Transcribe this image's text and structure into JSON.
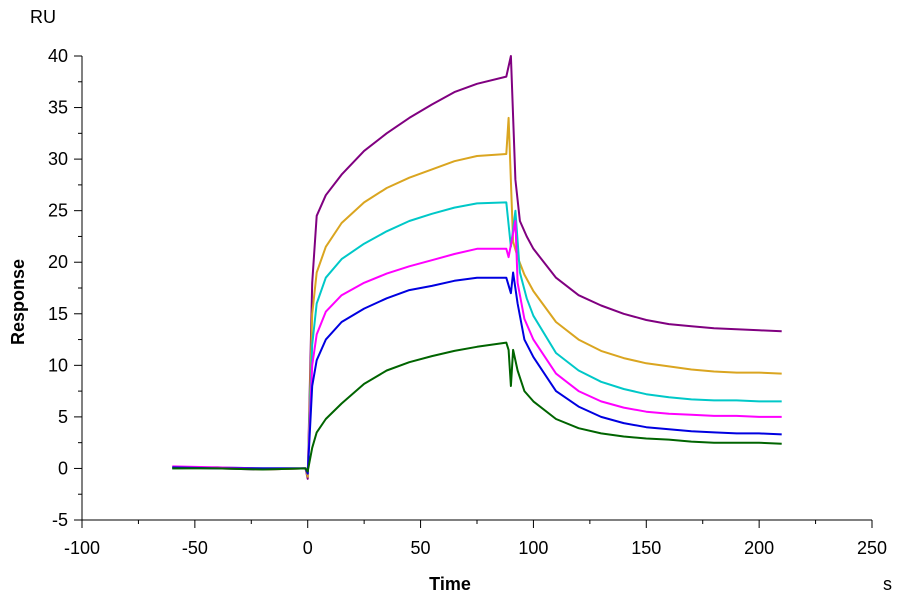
{
  "chart_data": {
    "type": "line",
    "title": "",
    "xlabel": "Time",
    "ylabel": "Response",
    "x_unit": "s",
    "y_unit": "RU",
    "xlim": [
      -100,
      250
    ],
    "ylim": [
      -5,
      40
    ],
    "xticks": [
      -100,
      -50,
      0,
      50,
      100,
      150,
      200,
      250
    ],
    "yticks": [
      -5,
      0,
      5,
      10,
      15,
      20,
      25,
      30,
      35,
      40
    ],
    "grid": false,
    "legend": "none",
    "series": [
      {
        "color": "#800080",
        "points": [
          [
            -60,
            0.1
          ],
          [
            -40,
            0.0
          ],
          [
            -20,
            -0.1
          ],
          [
            -1,
            0.0
          ],
          [
            0,
            -1.0
          ],
          [
            2,
            18
          ],
          [
            4,
            24.5
          ],
          [
            8,
            26.5
          ],
          [
            15,
            28.5
          ],
          [
            25,
            30.8
          ],
          [
            35,
            32.5
          ],
          [
            45,
            34.0
          ],
          [
            55,
            35.3
          ],
          [
            65,
            36.5
          ],
          [
            75,
            37.3
          ],
          [
            88,
            38.0
          ],
          [
            90,
            40.0
          ],
          [
            92,
            28
          ],
          [
            94,
            24
          ],
          [
            97,
            22.5
          ],
          [
            100,
            21.3
          ],
          [
            110,
            18.5
          ],
          [
            120,
            16.8
          ],
          [
            130,
            15.8
          ],
          [
            140,
            15.0
          ],
          [
            150,
            14.4
          ],
          [
            160,
            14.0
          ],
          [
            170,
            13.8
          ],
          [
            180,
            13.6
          ],
          [
            190,
            13.5
          ],
          [
            200,
            13.4
          ],
          [
            210,
            13.3
          ]
        ]
      },
      {
        "color": "#DAA520",
        "points": [
          [
            -60,
            0.0
          ],
          [
            -40,
            0.1
          ],
          [
            -20,
            -0.1
          ],
          [
            -1,
            0.0
          ],
          [
            0,
            -0.8
          ],
          [
            2,
            15
          ],
          [
            4,
            19
          ],
          [
            8,
            21.5
          ],
          [
            15,
            23.8
          ],
          [
            25,
            25.8
          ],
          [
            35,
            27.2
          ],
          [
            45,
            28.2
          ],
          [
            55,
            29.0
          ],
          [
            65,
            29.8
          ],
          [
            75,
            30.3
          ],
          [
            88,
            30.5
          ],
          [
            89,
            34.0
          ],
          [
            91,
            22
          ],
          [
            93,
            20.5
          ],
          [
            96,
            18.8
          ],
          [
            100,
            17.2
          ],
          [
            110,
            14.2
          ],
          [
            120,
            12.5
          ],
          [
            130,
            11.4
          ],
          [
            140,
            10.7
          ],
          [
            150,
            10.2
          ],
          [
            160,
            9.9
          ],
          [
            170,
            9.6
          ],
          [
            180,
            9.4
          ],
          [
            190,
            9.3
          ],
          [
            200,
            9.3
          ],
          [
            210,
            9.2
          ]
        ]
      },
      {
        "color": "#00C8C8",
        "points": [
          [
            -60,
            0.0
          ],
          [
            -40,
            0.1
          ],
          [
            -20,
            0.0
          ],
          [
            -1,
            0.0
          ],
          [
            0,
            -0.5
          ],
          [
            2,
            12
          ],
          [
            4,
            16
          ],
          [
            8,
            18.5
          ],
          [
            15,
            20.3
          ],
          [
            25,
            21.8
          ],
          [
            35,
            23.0
          ],
          [
            45,
            24.0
          ],
          [
            55,
            24.7
          ],
          [
            65,
            25.3
          ],
          [
            75,
            25.7
          ],
          [
            88,
            25.8
          ],
          [
            90,
            21.5
          ],
          [
            92,
            25.0
          ],
          [
            94,
            19
          ],
          [
            97,
            16.5
          ],
          [
            100,
            14.8
          ],
          [
            110,
            11.2
          ],
          [
            120,
            9.5
          ],
          [
            130,
            8.4
          ],
          [
            140,
            7.7
          ],
          [
            150,
            7.2
          ],
          [
            160,
            6.9
          ],
          [
            170,
            6.7
          ],
          [
            180,
            6.6
          ],
          [
            190,
            6.6
          ],
          [
            200,
            6.5
          ],
          [
            210,
            6.5
          ]
        ]
      },
      {
        "color": "#FF00FF",
        "points": [
          [
            -60,
            0.2
          ],
          [
            -40,
            0.1
          ],
          [
            -20,
            0.0
          ],
          [
            -1,
            0.0
          ],
          [
            0,
            -0.5
          ],
          [
            2,
            10
          ],
          [
            4,
            13
          ],
          [
            8,
            15.2
          ],
          [
            15,
            16.8
          ],
          [
            25,
            18.0
          ],
          [
            35,
            18.9
          ],
          [
            45,
            19.6
          ],
          [
            55,
            20.2
          ],
          [
            65,
            20.8
          ],
          [
            75,
            21.3
          ],
          [
            88,
            21.3
          ],
          [
            89,
            20.5
          ],
          [
            92,
            24.0
          ],
          [
            93,
            18
          ],
          [
            96,
            14.5
          ],
          [
            100,
            12.5
          ],
          [
            110,
            9.2
          ],
          [
            120,
            7.5
          ],
          [
            130,
            6.5
          ],
          [
            140,
            5.9
          ],
          [
            150,
            5.5
          ],
          [
            160,
            5.3
          ],
          [
            170,
            5.2
          ],
          [
            180,
            5.1
          ],
          [
            190,
            5.1
          ],
          [
            200,
            5.0
          ],
          [
            210,
            5.0
          ]
        ]
      },
      {
        "color": "#0000E0",
        "points": [
          [
            -60,
            0.1
          ],
          [
            -40,
            0.0
          ],
          [
            -20,
            0.0
          ],
          [
            -1,
            0.0
          ],
          [
            0,
            -0.5
          ],
          [
            2,
            8
          ],
          [
            4,
            10.5
          ],
          [
            8,
            12.5
          ],
          [
            15,
            14.2
          ],
          [
            25,
            15.5
          ],
          [
            35,
            16.5
          ],
          [
            45,
            17.3
          ],
          [
            55,
            17.7
          ],
          [
            65,
            18.2
          ],
          [
            75,
            18.5
          ],
          [
            88,
            18.5
          ],
          [
            90,
            17.0
          ],
          [
            91,
            19.0
          ],
          [
            93,
            16
          ],
          [
            96,
            12.5
          ],
          [
            100,
            10.8
          ],
          [
            110,
            7.5
          ],
          [
            120,
            6.0
          ],
          [
            130,
            5.0
          ],
          [
            140,
            4.4
          ],
          [
            150,
            4.0
          ],
          [
            160,
            3.8
          ],
          [
            170,
            3.6
          ],
          [
            180,
            3.5
          ],
          [
            190,
            3.4
          ],
          [
            200,
            3.4
          ],
          [
            210,
            3.3
          ]
        ]
      },
      {
        "color": "#006400",
        "points": [
          [
            -60,
            0.0
          ],
          [
            -40,
            0.0
          ],
          [
            -20,
            -0.1
          ],
          [
            -1,
            0.0
          ],
          [
            0,
            -0.3
          ],
          [
            2,
            2.0
          ],
          [
            4,
            3.5
          ],
          [
            8,
            4.8
          ],
          [
            15,
            6.3
          ],
          [
            25,
            8.2
          ],
          [
            35,
            9.5
          ],
          [
            45,
            10.3
          ],
          [
            55,
            10.9
          ],
          [
            65,
            11.4
          ],
          [
            75,
            11.8
          ],
          [
            88,
            12.2
          ],
          [
            89,
            11.5
          ],
          [
            90,
            8.0
          ],
          [
            91,
            11.5
          ],
          [
            93,
            9.5
          ],
          [
            96,
            7.5
          ],
          [
            100,
            6.5
          ],
          [
            110,
            4.8
          ],
          [
            120,
            3.9
          ],
          [
            130,
            3.4
          ],
          [
            140,
            3.1
          ],
          [
            150,
            2.9
          ],
          [
            160,
            2.8
          ],
          [
            170,
            2.6
          ],
          [
            180,
            2.5
          ],
          [
            190,
            2.5
          ],
          [
            200,
            2.5
          ],
          [
            210,
            2.4
          ]
        ]
      }
    ]
  }
}
